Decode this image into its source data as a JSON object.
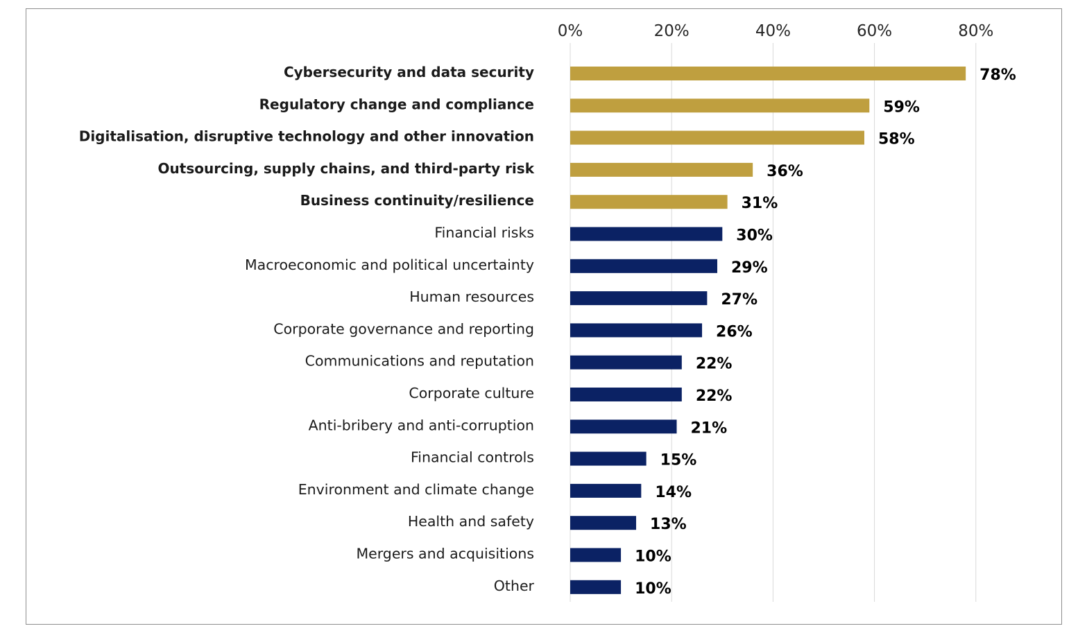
{
  "chart_data": {
    "type": "bar",
    "orientation": "horizontal",
    "title": "",
    "xlabel": "",
    "ylabel": "",
    "xlim": [
      0,
      80
    ],
    "ticks": [
      "0%",
      "20%",
      "40%",
      "60%",
      "80%"
    ],
    "tick_values": [
      0,
      20,
      40,
      60,
      80
    ],
    "axis_position": "top",
    "grid": true,
    "colors": {
      "highlight": "#bf9f3f",
      "normal": "#0b2264"
    },
    "categories": [
      "Cybersecurity and data security",
      "Regulatory change and compliance",
      "Digitalisation, disruptive technology and other innovation",
      "Outsourcing, supply chains, and third-party risk",
      "Business continuity/resilience",
      "Financial risks",
      "Macroeconomic and political uncertainty",
      "Human resources",
      "Corporate governance and reporting",
      "Communications and reputation",
      "Corporate culture",
      "Anti-bribery and anti-corruption",
      "Financial controls",
      "Environment and climate change",
      "Health and safety",
      "Mergers and acquisitions",
      "Other"
    ],
    "values": [
      78,
      59,
      58,
      36,
      31,
      30,
      29,
      27,
      26,
      22,
      22,
      21,
      15,
      14,
      13,
      10,
      10
    ],
    "value_labels": [
      "78%",
      "59%",
      "58%",
      "36%",
      "31%",
      "30%",
      "29%",
      "27%",
      "26%",
      "22%",
      "22%",
      "21%",
      "15%",
      "14%",
      "13%",
      "10%",
      "10%"
    ],
    "highlighted": [
      true,
      true,
      true,
      true,
      true,
      false,
      false,
      false,
      false,
      false,
      false,
      false,
      false,
      false,
      false,
      false,
      false
    ]
  }
}
